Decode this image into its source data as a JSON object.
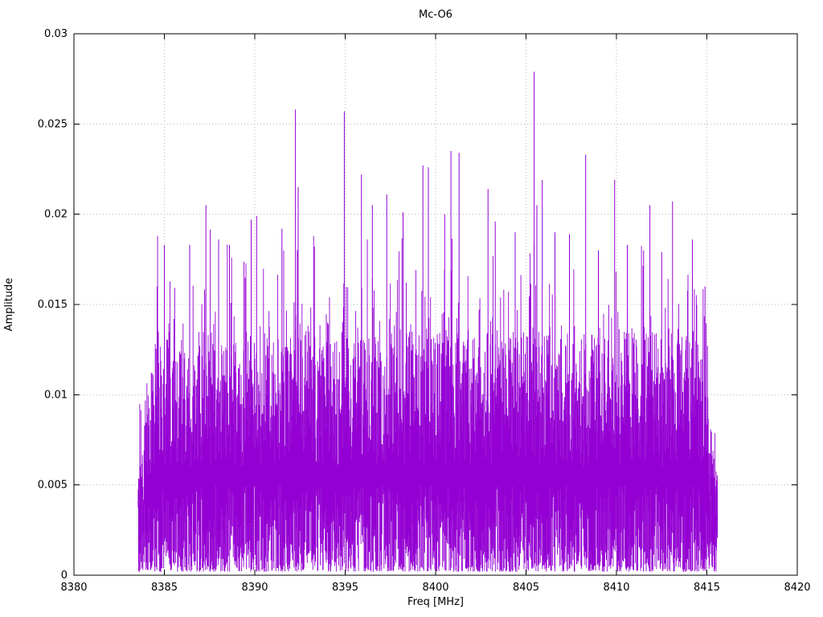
{
  "chart_data": {
    "type": "line",
    "title": "Mc-O6",
    "xlabel": "Freq [MHz]",
    "ylabel": "Amplitude",
    "xlim": [
      8380,
      8420
    ],
    "ylim": [
      0,
      0.03
    ],
    "xticks": [
      8380,
      8385,
      8390,
      8395,
      8400,
      8405,
      8410,
      8415,
      8420
    ],
    "yticks": [
      0,
      0.005,
      0.01,
      0.015,
      0.02,
      0.025,
      0.03
    ],
    "ytick_labels": [
      "0",
      "0.005",
      "0.01",
      "0.015",
      "0.02",
      "0.025",
      "0.03"
    ],
    "grid": true,
    "legend": "none",
    "series_color": "#9400d3",
    "grid_color": "#b8b8b8",
    "border_color": "#000000",
    "signal_band_mhz": [
      8383.55,
      8415.6
    ],
    "noise_envelope": {
      "seed": 20231,
      "step_mhz": 0.022,
      "base_top_min": 0.006,
      "base_top_max": 0.0135,
      "spike_prob": 0.28,
      "spike_extra_max": 0.0065,
      "tall_spike_prob": 0.02,
      "tall_extra_max": 0.003,
      "bottom_max": 0.0048,
      "floor_min": 0.0002,
      "edge_ramp_mhz": 1.0,
      "edge_min_factor": 0.45,
      "peak_base": 0.0035
    },
    "peaks": [
      [
        8384.6,
        0.016
      ],
      [
        8385.0,
        0.0183
      ],
      [
        8386.4,
        0.0183
      ],
      [
        8387.3,
        0.0205
      ],
      [
        8388.0,
        0.0186
      ],
      [
        8388.6,
        0.0183
      ],
      [
        8389.8,
        0.0197
      ],
      [
        8390.1,
        0.0199
      ],
      [
        8391.5,
        0.0192
      ],
      [
        8392.25,
        0.0258
      ],
      [
        8392.4,
        0.0215
      ],
      [
        8393.3,
        0.0182
      ],
      [
        8394.95,
        0.0257
      ],
      [
        8395.9,
        0.0222
      ],
      [
        8396.5,
        0.0205
      ],
      [
        8397.3,
        0.0211
      ],
      [
        8398.2,
        0.0201
      ],
      [
        8399.3,
        0.0227
      ],
      [
        8399.6,
        0.0226
      ],
      [
        8400.5,
        0.02
      ],
      [
        8400.85,
        0.0235
      ],
      [
        8401.3,
        0.0234
      ],
      [
        8402.9,
        0.0214
      ],
      [
        8403.3,
        0.0196
      ],
      [
        8404.4,
        0.019
      ],
      [
        8405.45,
        0.0279
      ],
      [
        8405.6,
        0.0205
      ],
      [
        8405.9,
        0.0219
      ],
      [
        8406.6,
        0.019
      ],
      [
        8407.4,
        0.0189
      ],
      [
        8408.3,
        0.0233
      ],
      [
        8409.0,
        0.018
      ],
      [
        8409.9,
        0.0219
      ],
      [
        8410.6,
        0.0183
      ],
      [
        8411.5,
        0.018
      ],
      [
        8411.85,
        0.0205
      ],
      [
        8412.5,
        0.0179
      ],
      [
        8413.1,
        0.0207
      ],
      [
        8414.2,
        0.0186
      ],
      [
        8414.9,
        0.016
      ]
    ]
  }
}
